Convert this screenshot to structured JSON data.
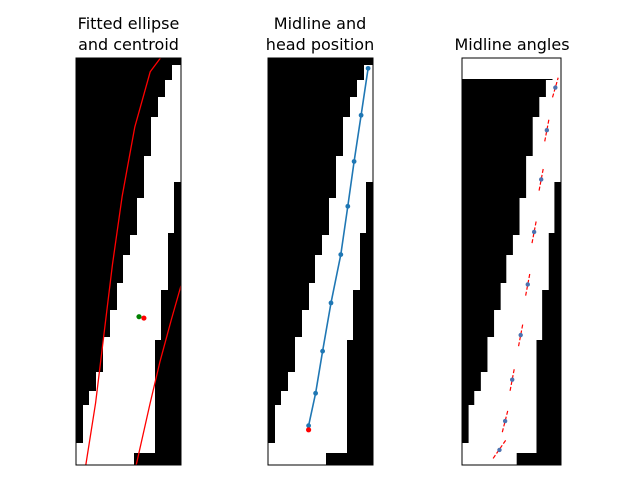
{
  "panels": [
    {
      "title": [
        "Fitted ellipse",
        "and centroid"
      ],
      "xlim": [
        0,
        15
      ],
      "ylim": [
        59,
        0
      ],
      "overlay": "ellipse",
      "ellipse_lines": [
        {
          "color": "#ff0000",
          "points": [
            [
              1.4,
              59
            ],
            [
              2.8,
              50
            ],
            [
              4.0,
              40
            ],
            [
              5.2,
              30
            ],
            [
              6.6,
              20
            ],
            [
              8.4,
              10
            ],
            [
              10.6,
              2
            ],
            [
              15,
              -4
            ]
          ]
        },
        {
          "color": "#ff0000",
          "points": [
            [
              8.6,
              59
            ],
            [
              10.6,
              50
            ],
            [
              12.0,
              44
            ],
            [
              13.6,
              38
            ],
            [
              15,
              33
            ]
          ]
        }
      ],
      "points": [
        {
          "x": 9.0,
          "y": 37.5,
          "color": "#008000"
        },
        {
          "x": 9.7,
          "y": 37.7,
          "color": "#ff0000"
        }
      ]
    },
    {
      "title": [
        "Midline and",
        "head position"
      ],
      "xlim": [
        0,
        15
      ],
      "ylim": [
        59,
        0
      ],
      "overlay": "midline",
      "midline": {
        "color": "#1f77b4",
        "x": [
          5.8,
          6.8,
          7.8,
          9.0,
          10.4,
          11.4,
          12.3,
          13.3,
          14.3
        ],
        "y": [
          53.3,
          48.6,
          42.5,
          35.5,
          28.5,
          21.5,
          15.0,
          8.3,
          1.5
        ]
      },
      "head": {
        "x": 5.8,
        "y": 53.9,
        "color": "#ff0000"
      }
    },
    {
      "title": [
        "Midline angles"
      ],
      "xlim": [
        0,
        14
      ],
      "ylim": [
        59,
        -3
      ],
      "overlay": "angles",
      "angle_points": {
        "color": "#4c72b0",
        "x": [
          5.3,
          6.1,
          7.1,
          8.3,
          9.3,
          10.2,
          11.2,
          12.0,
          13.2
        ],
        "y": [
          56.7,
          52.3,
          46.0,
          39.2,
          31.5,
          23.5,
          15.5,
          8.0,
          1.5
        ]
      },
      "angle_segments": [
        {
          "x1": 4.4,
          "y1": 58.0,
          "x2": 6.2,
          "y2": 55.2
        },
        {
          "x1": 5.7,
          "y1": 54.0,
          "x2": 6.5,
          "y2": 50.6
        },
        {
          "x1": 6.8,
          "y1": 47.7,
          "x2": 7.4,
          "y2": 44.3
        },
        {
          "x1": 8.0,
          "y1": 40.9,
          "x2": 8.6,
          "y2": 37.5
        },
        {
          "x1": 9.0,
          "y1": 33.2,
          "x2": 9.6,
          "y2": 29.8
        },
        {
          "x1": 9.9,
          "y1": 25.2,
          "x2": 10.5,
          "y2": 21.8
        },
        {
          "x1": 10.9,
          "y1": 17.2,
          "x2": 11.5,
          "y2": 13.8
        },
        {
          "x1": 11.7,
          "y1": 9.7,
          "x2": 12.3,
          "y2": 6.3
        },
        {
          "x1": 12.8,
          "y1": 3.0,
          "x2": 13.6,
          "y2": 0.0
        }
      ]
    }
  ],
  "chart_data": [
    {
      "type": "scatter",
      "title": "Fitted ellipse\nand centroid",
      "xlim": [
        0,
        15
      ],
      "ylim": [
        59,
        0
      ],
      "series": [
        {
          "name": "",
          "x": [
            9.0
          ],
          "y": [
            37.5
          ],
          "color": "#008000"
        },
        {
          "name": "",
          "x": [
            9.7
          ],
          "y": [
            37.7
          ],
          "color": "#ff0000"
        }
      ],
      "grid": false
    },
    {
      "type": "line",
      "title": "Midline and\nhead position",
      "xlim": [
        0,
        15
      ],
      "ylim": [
        59,
        0
      ],
      "series": [
        {
          "name": "",
          "x": [
            5.8,
            6.8,
            7.8,
            9.0,
            10.4,
            11.4,
            12.3,
            13.3,
            14.3
          ],
          "y": [
            53.3,
            48.6,
            42.5,
            35.5,
            28.5,
            21.5,
            15.0,
            8.3,
            1.5
          ],
          "color": "#1f77b4"
        },
        {
          "name": "",
          "x": [
            5.8
          ],
          "y": [
            53.9
          ],
          "color": "#ff0000"
        }
      ],
      "grid": false
    },
    {
      "type": "scatter",
      "title": "Midline angles",
      "xlim": [
        0,
        14
      ],
      "ylim": [
        59,
        -3
      ],
      "series": [
        {
          "name": "",
          "x": [
            5.3,
            6.1,
            7.1,
            8.3,
            9.3,
            10.2,
            11.2,
            12.0,
            13.2
          ],
          "y": [
            56.7,
            52.3,
            46.0,
            39.2,
            31.5,
            23.5,
            15.5,
            8.0,
            1.5
          ],
          "color": "#4c72b0"
        }
      ],
      "grid": false
    }
  ]
}
